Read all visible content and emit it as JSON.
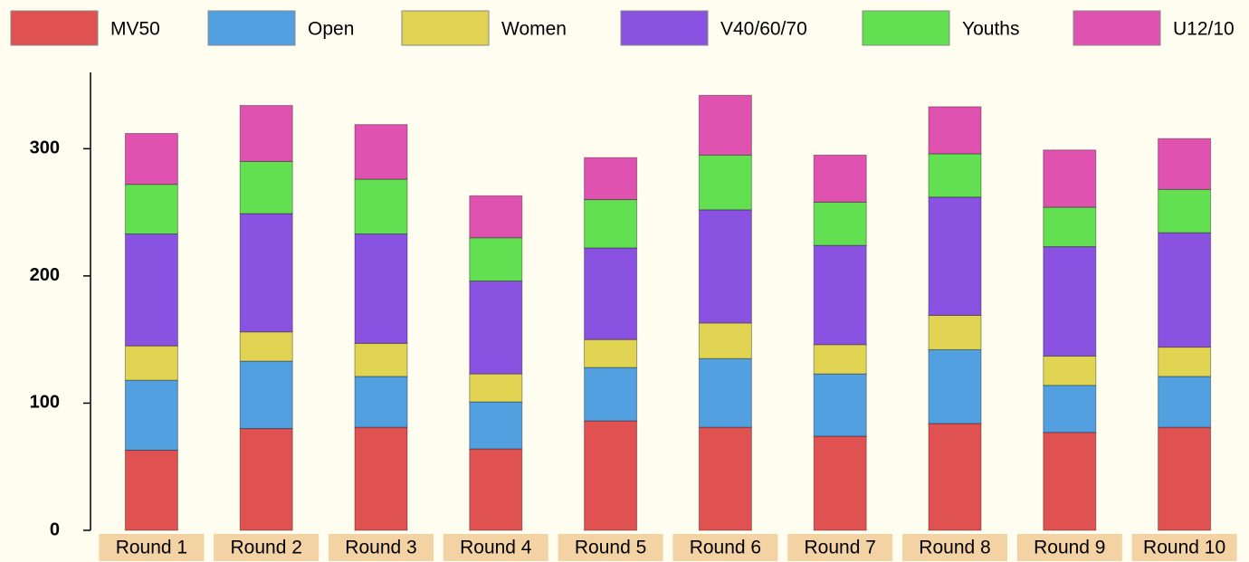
{
  "chart_data": {
    "type": "stacked_bar",
    "categories": [
      "Round 1",
      "Round 2",
      "Round 3",
      "Round 4",
      "Round 5",
      "Round 6",
      "Round 7",
      "Round 8",
      "Round 9",
      "Round 10"
    ],
    "series": [
      {
        "name": "MV50",
        "color": "#e05252",
        "values": [
          63,
          80,
          81,
          64,
          86,
          81,
          74,
          84,
          77,
          81
        ]
      },
      {
        "name": "Open",
        "color": "#52a0e0",
        "values": [
          55,
          53,
          40,
          37,
          42,
          54,
          49,
          58,
          37,
          40
        ]
      },
      {
        "name": "Women",
        "color": "#e0d452",
        "values": [
          27,
          23,
          26,
          22,
          22,
          28,
          23,
          27,
          23,
          23
        ]
      },
      {
        "name": "V40/60/70",
        "color": "#8a52e0",
        "values": [
          88,
          93,
          86,
          73,
          72,
          89,
          78,
          93,
          86,
          90
        ]
      },
      {
        "name": "Youths",
        "color": "#62e052",
        "values": [
          39,
          41,
          43,
          34,
          38,
          43,
          34,
          34,
          31,
          34
        ]
      },
      {
        "name": "U12/10",
        "color": "#e052b0",
        "values": [
          40,
          44,
          43,
          33,
          33,
          47,
          37,
          37,
          45,
          40
        ]
      }
    ],
    "ylim": [
      0,
      360
    ],
    "yticks": [
      0,
      100,
      200,
      300
    ],
    "legend": "top"
  }
}
